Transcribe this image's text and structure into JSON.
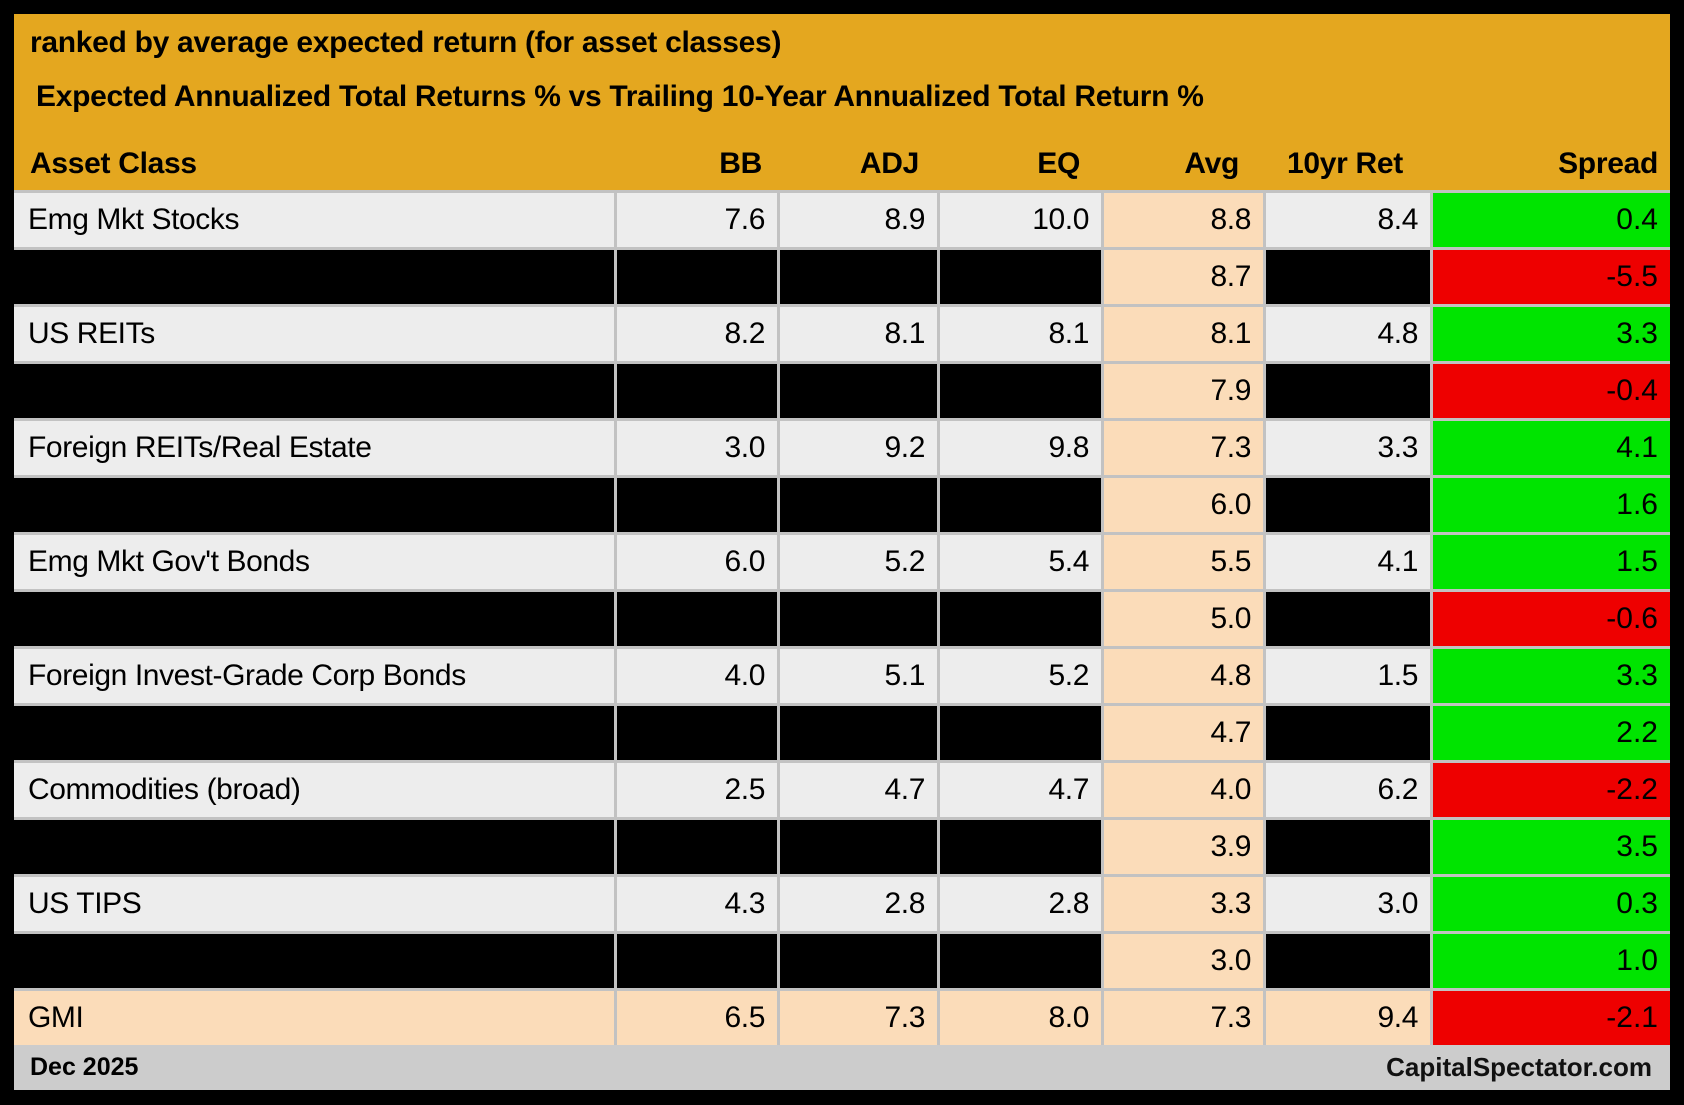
{
  "chart_data": {
    "type": "table",
    "title": "ranked by average expected return (for asset classes)",
    "subtitle": "Expected Annualized Total Returns % vs Trailing 10-Year Annualized Total Return %",
    "columns": [
      {
        "key": "name",
        "label": "Asset Class"
      },
      {
        "key": "bb",
        "label": "BB"
      },
      {
        "key": "adj",
        "label": "ADJ"
      },
      {
        "key": "eq",
        "label": "EQ"
      },
      {
        "key": "avg",
        "label": "Avg"
      },
      {
        "key": "ret10",
        "label": "10yr Ret"
      },
      {
        "key": "spread",
        "label": "Spread"
      }
    ],
    "rows": [
      {
        "type": "data",
        "name": "Emg Mkt Stocks",
        "bb": "7.6",
        "adj": "8.9",
        "eq": "10.0",
        "avg": "8.8",
        "ret10": "8.4",
        "spread": "0.4"
      },
      {
        "type": "redacted",
        "name": null,
        "bb": null,
        "adj": null,
        "eq": null,
        "avg": "8.7",
        "ret10": null,
        "spread": "-5.5"
      },
      {
        "type": "data",
        "name": "US REITs",
        "bb": "8.2",
        "adj": "8.1",
        "eq": "8.1",
        "avg": "8.1",
        "ret10": "4.8",
        "spread": "3.3"
      },
      {
        "type": "redacted",
        "name": null,
        "bb": null,
        "adj": null,
        "eq": null,
        "avg": "7.9",
        "ret10": null,
        "spread": "-0.4"
      },
      {
        "type": "data",
        "name": "Foreign REITs/Real Estate",
        "bb": "3.0",
        "adj": "9.2",
        "eq": "9.8",
        "avg": "7.3",
        "ret10": "3.3",
        "spread": "4.1"
      },
      {
        "type": "redacted",
        "name": null,
        "bb": null,
        "adj": null,
        "eq": null,
        "avg": "6.0",
        "ret10": null,
        "spread": "1.6"
      },
      {
        "type": "data",
        "name": "Emg Mkt Gov't Bonds",
        "bb": "6.0",
        "adj": "5.2",
        "eq": "5.4",
        "avg": "5.5",
        "ret10": "4.1",
        "spread": "1.5"
      },
      {
        "type": "redacted",
        "name": null,
        "bb": null,
        "adj": null,
        "eq": null,
        "avg": "5.0",
        "ret10": null,
        "spread": "-0.6"
      },
      {
        "type": "data",
        "name": "Foreign Invest-Grade Corp Bonds",
        "bb": "4.0",
        "adj": "5.1",
        "eq": "5.2",
        "avg": "4.8",
        "ret10": "1.5",
        "spread": "3.3"
      },
      {
        "type": "redacted",
        "name": null,
        "bb": null,
        "adj": null,
        "eq": null,
        "avg": "4.7",
        "ret10": null,
        "spread": "2.2"
      },
      {
        "type": "data",
        "name": "Commodities (broad)",
        "bb": "2.5",
        "adj": "4.7",
        "eq": "4.7",
        "avg": "4.0",
        "ret10": "6.2",
        "spread": "-2.2"
      },
      {
        "type": "redacted",
        "name": null,
        "bb": null,
        "adj": null,
        "eq": null,
        "avg": "3.9",
        "ret10": null,
        "spread": "3.5"
      },
      {
        "type": "data",
        "name": "US TIPS",
        "bb": "4.3",
        "adj": "2.8",
        "eq": "2.8",
        "avg": "3.3",
        "ret10": "3.0",
        "spread": "0.3"
      },
      {
        "type": "redacted",
        "name": null,
        "bb": null,
        "adj": null,
        "eq": null,
        "avg": "3.0",
        "ret10": null,
        "spread": "1.0"
      },
      {
        "type": "summary",
        "name": "GMI",
        "bb": "6.5",
        "adj": "7.3",
        "eq": "8.0",
        "avg": "7.3",
        "ret10": "9.4",
        "spread": "-2.1"
      }
    ]
  },
  "footer": {
    "date": "Dec 2025",
    "source": "CapitalSpectator.com"
  },
  "colors": {
    "header_bg": "#E4A71F",
    "row_bg": "#EDEDED",
    "avg_bg": "#FBDCB9",
    "positive_bg": "#00E400",
    "negative_bg": "#EE0000",
    "redacted_bg": "#000000",
    "footer_bg": "#CCCCCC",
    "grid_line": "#C2C2C2",
    "text": "#000000"
  }
}
